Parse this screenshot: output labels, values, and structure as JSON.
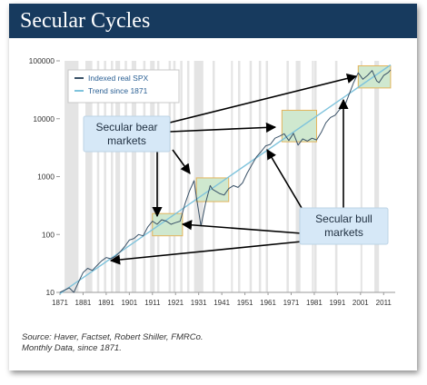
{
  "title": "Secular Cycles",
  "colors": {
    "header": "#173a5e",
    "series": "#3a5268",
    "trend": "#7ec3dc",
    "bear_box": "#cfe8cf",
    "bear_box_border": "#e3b45a",
    "callout": "#d6e8f7",
    "recession_band": "#e4e4e4"
  },
  "source": {
    "line1": "Source: Haver, Factset, Robert Shiller, FMRCo.",
    "line2": "Monthly Data, since 1871."
  },
  "callouts": {
    "bear_line1": "Secular bear",
    "bear_line2": "markets",
    "bull_line1": "Secular bull",
    "bull_line2": "markets"
  },
  "chart_data": {
    "type": "line",
    "y_scale": "log",
    "ylim": [
      10,
      100000
    ],
    "xlim": [
      1871,
      2016
    ],
    "y_ticks": [
      {
        "value": 10,
        "label": "10"
      },
      {
        "value": 100,
        "label": "100"
      },
      {
        "value": 1000,
        "label": "1000"
      },
      {
        "value": 10000,
        "label": "10000"
      },
      {
        "value": 100000,
        "label": "100000"
      }
    ],
    "x_ticks": [
      "1871",
      "1881",
      "1891",
      "1901",
      "1911",
      "1921",
      "1931",
      "1941",
      "1951",
      "1961",
      "1971",
      "1981",
      "1991",
      "2001",
      "2011"
    ],
    "legend": {
      "position": "top-left",
      "entries": [
        {
          "label": "Indexed real SPX",
          "color": "#3a5268"
        },
        {
          "label": "Trend since 1871",
          "color": "#7ec3dc"
        }
      ]
    },
    "series": [
      {
        "name": "Indexed real SPX",
        "x": [
          1871,
          1873,
          1875,
          1877,
          1879,
          1881,
          1883,
          1885,
          1887,
          1889,
          1891,
          1893,
          1895,
          1897,
          1899,
          1901,
          1903,
          1905,
          1907,
          1909,
          1911,
          1913,
          1915,
          1917,
          1919,
          1921,
          1923,
          1925,
          1927,
          1929,
          1930,
          1932,
          1934,
          1936,
          1937,
          1940,
          1942,
          1944,
          1946,
          1948,
          1950,
          1952,
          1954,
          1956,
          1958,
          1960,
          1962,
          1964,
          1966,
          1968,
          1970,
          1972,
          1974,
          1976,
          1978,
          1980,
          1982,
          1984,
          1986,
          1988,
          1990,
          1992,
          1994,
          1996,
          1998,
          2000,
          2002,
          2004,
          2006,
          2008,
          2009,
          2011,
          2013,
          2014
        ],
        "values": [
          10,
          11,
          12,
          10,
          15,
          22,
          26,
          24,
          29,
          35,
          40,
          38,
          42,
          50,
          62,
          80,
          85,
          100,
          95,
          135,
          170,
          150,
          180,
          170,
          150,
          160,
          170,
          330,
          560,
          850,
          450,
          140,
          350,
          700,
          600,
          510,
          480,
          620,
          700,
          650,
          780,
          1150,
          1600,
          2200,
          2700,
          3400,
          3600,
          4600,
          5000,
          5500,
          4200,
          5600,
          3500,
          4500,
          4100,
          4600,
          4300,
          5800,
          8500,
          10500,
          11500,
          14500,
          16000,
          26000,
          42000,
          62000,
          48000,
          56000,
          68000,
          45000,
          42000,
          56000,
          63000,
          70000
        ]
      },
      {
        "name": "Trend since 1871",
        "x": [
          1871,
          2014
        ],
        "values": [
          9.5,
          85000
        ]
      }
    ],
    "bear_market_periods": [
      {
        "start": 1911,
        "end": 1924,
        "low": 95,
        "high": 230
      },
      {
        "start": 1930,
        "end": 1944,
        "low": 370,
        "high": 950
      },
      {
        "start": 1967,
        "end": 1982,
        "low": 4000,
        "high": 14000
      },
      {
        "start": 2000,
        "end": 2014,
        "low": 34000,
        "high": 82000
      }
    ],
    "recession_bands": [
      [
        1873,
        1879
      ],
      [
        1882,
        1885
      ],
      [
        1887,
        1888
      ],
      [
        1890,
        1891
      ],
      [
        1893,
        1894
      ],
      [
        1895,
        1897
      ],
      [
        1899,
        1900
      ],
      [
        1902,
        1904
      ],
      [
        1907,
        1908
      ],
      [
        1910,
        1912
      ],
      [
        1913,
        1914
      ],
      [
        1918,
        1919
      ],
      [
        1920,
        1921
      ],
      [
        1923,
        1924
      ],
      [
        1926,
        1927
      ],
      [
        1929,
        1933
      ],
      [
        1937,
        1938
      ],
      [
        1945,
        1945
      ],
      [
        1948,
        1949
      ],
      [
        1953,
        1954
      ],
      [
        1957,
        1958
      ],
      [
        1960,
        1961
      ],
      [
        1969,
        1970
      ],
      [
        1973,
        1975
      ],
      [
        1980,
        1980
      ],
      [
        1981,
        1982
      ],
      [
        1990,
        1991
      ],
      [
        2001,
        2001
      ],
      [
        2007,
        2009
      ]
    ]
  }
}
